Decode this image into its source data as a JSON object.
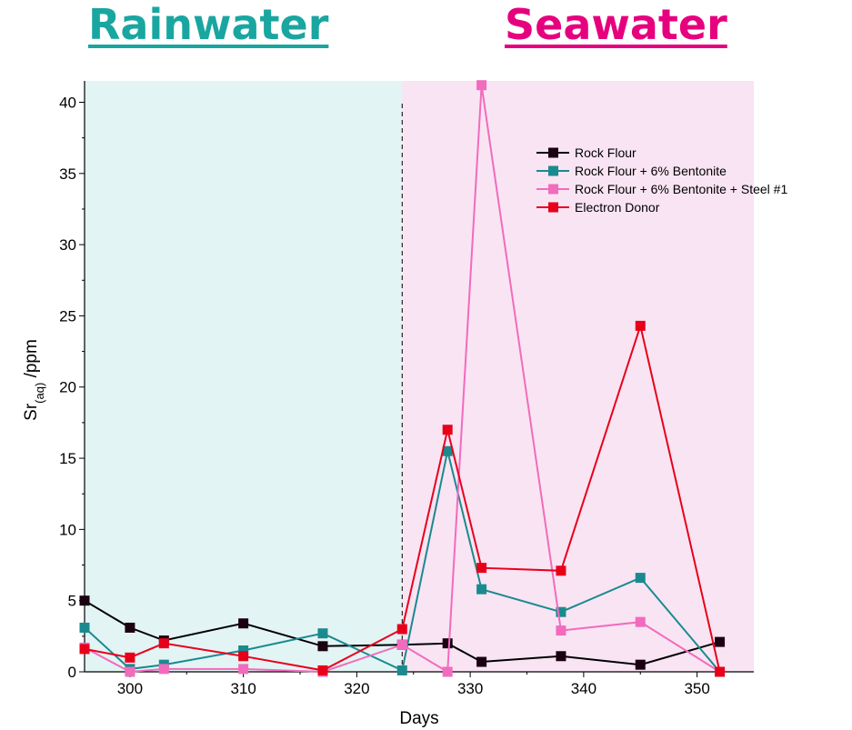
{
  "headers": {
    "rainwater": {
      "label": "Rainwater",
      "color": "#1aa6a0"
    },
    "seawater": {
      "label": "Seawater",
      "color": "#e6007e"
    }
  },
  "chart_data": {
    "type": "line",
    "xlabel": "Days",
    "ylabel_main": "Sr",
    "ylabel_sub": "(aq)",
    "ylabel_suffix": " /ppm",
    "xlim": [
      296,
      355
    ],
    "ylim": [
      0,
      41.5
    ],
    "xticks": [
      300,
      310,
      320,
      330,
      340,
      350
    ],
    "yticks": [
      0,
      5,
      10,
      15,
      20,
      25,
      30,
      35,
      40
    ],
    "regions": [
      {
        "name": "Rainwater",
        "x_start": 296,
        "x_end": 324,
        "color": "#e3f4f4"
      },
      {
        "name": "Seawater",
        "x_start": 324,
        "x_end": 355,
        "color": "#f9e4f3"
      }
    ],
    "divider_x": 324,
    "series": [
      {
        "name": "Rock Flour",
        "color": "#000000",
        "marker_color": "#1a0010",
        "x": [
          296,
          300,
          303,
          310,
          317,
          324,
          328,
          331,
          338,
          345,
          352
        ],
        "y": [
          5.0,
          3.1,
          2.2,
          3.4,
          1.8,
          1.9,
          2.0,
          0.7,
          1.1,
          0.5,
          2.1
        ]
      },
      {
        "name": "Rock Flour + 6% Bentonite",
        "color": "#1a8a8f",
        "marker_color": "#1a8a8f",
        "x": [
          296,
          300,
          303,
          310,
          317,
          324,
          328,
          331,
          338,
          345,
          352
        ],
        "y": [
          3.1,
          0.2,
          0.5,
          1.5,
          2.7,
          0.1,
          15.5,
          5.8,
          4.2,
          6.6,
          0.0
        ]
      },
      {
        "name": "Rock Flour + 6% Bentonite + Steel #1",
        "color": "#f26bbd",
        "marker_color": "#f26bbd",
        "x": [
          296,
          300,
          303,
          310,
          317,
          324,
          328,
          331,
          338,
          345,
          352
        ],
        "y": [
          1.7,
          0.0,
          0.2,
          0.2,
          0.0,
          1.9,
          0.0,
          41.2,
          2.9,
          3.5,
          0.0
        ]
      },
      {
        "name": "Electron Donor",
        "color": "#e8001a",
        "marker_color": "#e8001a",
        "x": [
          296,
          300,
          303,
          310,
          317,
          324,
          328,
          331,
          338,
          345,
          352
        ],
        "y": [
          1.6,
          1.0,
          2.0,
          1.1,
          0.1,
          3.0,
          17.0,
          7.3,
          7.1,
          24.3,
          0.0
        ]
      }
    ]
  }
}
